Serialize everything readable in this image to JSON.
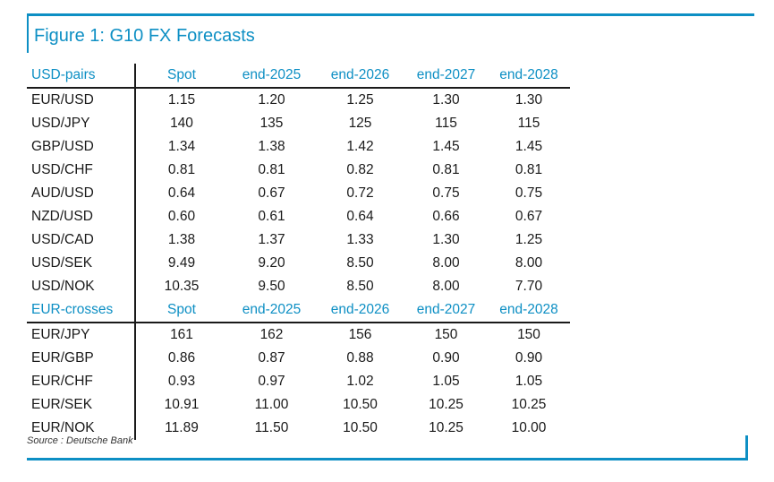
{
  "title": "Figure 1: G10 FX Forecasts",
  "usd_section": {
    "headers": [
      "USD-pairs",
      "Spot",
      "end-2025",
      "end-2026",
      "end-2027",
      "end-2028"
    ],
    "rows": [
      [
        "EUR/USD",
        "1.15",
        "1.20",
        "1.25",
        "1.30",
        "1.30"
      ],
      [
        "USD/JPY",
        "140",
        "135",
        "125",
        "115",
        "115"
      ],
      [
        "GBP/USD",
        "1.34",
        "1.38",
        "1.42",
        "1.45",
        "1.45"
      ],
      [
        "USD/CHF",
        "0.81",
        "0.81",
        "0.82",
        "0.81",
        "0.81"
      ],
      [
        "AUD/USD",
        "0.64",
        "0.67",
        "0.72",
        "0.75",
        "0.75"
      ],
      [
        "NZD/USD",
        "0.60",
        "0.61",
        "0.64",
        "0.66",
        "0.67"
      ],
      [
        "USD/CAD",
        "1.38",
        "1.37",
        "1.33",
        "1.30",
        "1.25"
      ],
      [
        "USD/SEK",
        "9.49",
        "9.20",
        "8.50",
        "8.00",
        "8.00"
      ],
      [
        "USD/NOK",
        "10.35",
        "9.50",
        "8.50",
        "8.00",
        "7.70"
      ]
    ]
  },
  "eur_section": {
    "headers": [
      "EUR-crosses",
      "Spot",
      "end-2025",
      "end-2026",
      "end-2027",
      "end-2028"
    ],
    "rows": [
      [
        "EUR/JPY",
        "161",
        "162",
        "156",
        "150",
        "150"
      ],
      [
        "EUR/GBP",
        "0.86",
        "0.87",
        "0.88",
        "0.90",
        "0.90"
      ],
      [
        "EUR/CHF",
        "0.93",
        "0.97",
        "1.02",
        "1.05",
        "1.05"
      ],
      [
        "EUR/SEK",
        "10.91",
        "11.00",
        "10.50",
        "10.25",
        "10.25"
      ],
      [
        "EUR/NOK",
        "11.89",
        "11.50",
        "10.50",
        "10.25",
        "10.00"
      ]
    ]
  },
  "source": "Source : Deutsche Bank",
  "colors": {
    "accent": "#0d8fc4",
    "text": "#1a1a1a"
  }
}
